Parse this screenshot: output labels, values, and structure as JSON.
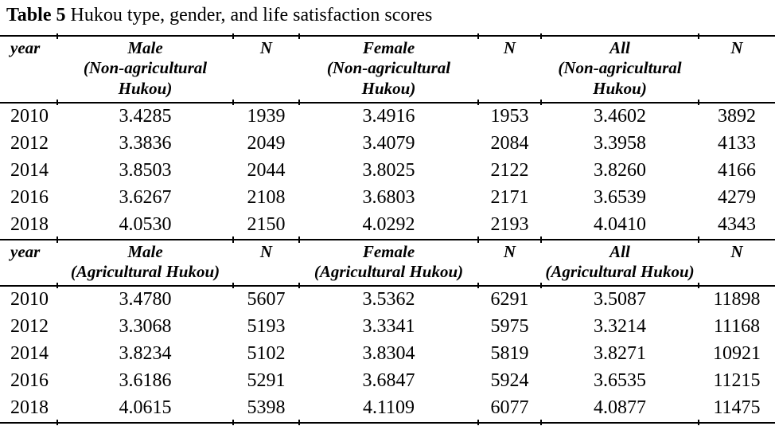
{
  "caption": {
    "label": "Table 5",
    "text": " Hukou type, gender, and life satisfaction scores"
  },
  "colors": {
    "text": "#000000",
    "background": "#ffffff",
    "rule": "#000000"
  },
  "table": {
    "sections": [
      {
        "headers": [
          "year",
          "Male\n(Non-agricultural\nHukou)",
          "N",
          "Female\n(Non-agricultural\nHukou)",
          "N",
          "All\n(Non-agricultural\nHukou)",
          "N"
        ],
        "rows": [
          [
            "2010",
            "3.4285",
            "1939",
            "3.4916",
            "1953",
            "3.4602",
            "3892"
          ],
          [
            "2012",
            "3.3836",
            "2049",
            "3.4079",
            "2084",
            "3.3958",
            "4133"
          ],
          [
            "2014",
            "3.8503",
            "2044",
            "3.8025",
            "2122",
            "3.8260",
            "4166"
          ],
          [
            "2016",
            "3.6267",
            "2108",
            "3.6803",
            "2171",
            "3.6539",
            "4279"
          ],
          [
            "2018",
            "4.0530",
            "2150",
            "4.0292",
            "2193",
            "4.0410",
            "4343"
          ]
        ]
      },
      {
        "headers": [
          "year",
          "Male\n(Agricultural Hukou)",
          "N",
          "Female\n(Agricultural Hukou)",
          "N",
          "All\n(Agricultural Hukou)",
          "N"
        ],
        "rows": [
          [
            "2010",
            "3.4780",
            "5607",
            "3.5362",
            "6291",
            "3.5087",
            "11898"
          ],
          [
            "2012",
            "3.3068",
            "5193",
            "3.3341",
            "5975",
            "3.3214",
            "11168"
          ],
          [
            "2014",
            "3.8234",
            "5102",
            "3.8304",
            "5819",
            "3.8271",
            "10921"
          ],
          [
            "2016",
            "3.6186",
            "5291",
            "3.6847",
            "5924",
            "3.6535",
            "11215"
          ],
          [
            "2018",
            "4.0615",
            "5398",
            "4.1109",
            "6077",
            "4.0877",
            "11475"
          ]
        ]
      }
    ]
  }
}
